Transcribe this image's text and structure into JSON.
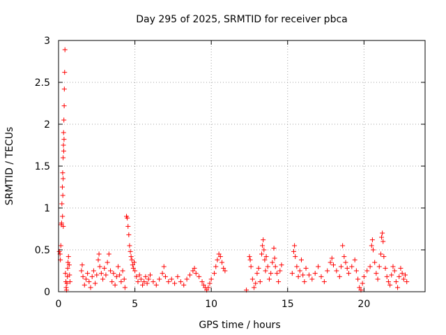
{
  "chart_data": {
    "type": "scatter",
    "title": "Day 295 of 2025, SRMTID for receiver pbca",
    "xlabel": "GPS time / hours",
    "ylabel": "SRMTID / TECUs",
    "xlim": [
      0,
      24
    ],
    "ylim": [
      0,
      3
    ],
    "xticks": [
      0,
      5,
      10,
      15,
      20
    ],
    "yticks": [
      0,
      0.5,
      1,
      1.5,
      2,
      2.5,
      3
    ],
    "xtick_labels": [
      "0",
      "5",
      "10",
      "15",
      "20"
    ],
    "ytick_labels": [
      "0",
      "0.5",
      "1",
      "1.5",
      "2",
      "2.5",
      "3"
    ],
    "grid": true,
    "marker": "plus",
    "color": "#ff0000",
    "series": [
      {
        "name": "pbca",
        "points": [
          [
            0.05,
            0.48
          ],
          [
            0.1,
            0.45
          ],
          [
            0.12,
            0.38
          ],
          [
            0.15,
            0.55
          ],
          [
            0.18,
            0.8
          ],
          [
            0.2,
            0.82
          ],
          [
            0.22,
            1.05
          ],
          [
            0.25,
            1.25
          ],
          [
            0.27,
            1.42
          ],
          [
            0.3,
            1.6
          ],
          [
            0.32,
            1.75
          ],
          [
            0.33,
            1.9
          ],
          [
            0.35,
            2.05
          ],
          [
            0.37,
            2.22
          ],
          [
            0.38,
            2.42
          ],
          [
            0.4,
            2.62
          ],
          [
            0.42,
            2.89
          ],
          [
            0.3,
            1.35
          ],
          [
            0.28,
            1.15
          ],
          [
            0.34,
            1.68
          ],
          [
            0.36,
            1.82
          ],
          [
            0.31,
            0.78
          ],
          [
            0.26,
            0.9
          ],
          [
            0.45,
            0.22
          ],
          [
            0.48,
            0.12
          ],
          [
            0.5,
            0.05
          ],
          [
            0.52,
            0.02
          ],
          [
            0.55,
            0.1
          ],
          [
            0.58,
            0.18
          ],
          [
            0.6,
            0.28
          ],
          [
            0.62,
            0.35
          ],
          [
            0.65,
            0.42
          ],
          [
            0.7,
            0.32
          ],
          [
            0.72,
            0.2
          ],
          [
            0.75,
            0.12
          ],
          [
            1.5,
            0.25
          ],
          [
            1.55,
            0.32
          ],
          [
            1.6,
            0.18
          ],
          [
            1.7,
            0.08
          ],
          [
            1.8,
            0.15
          ],
          [
            1.9,
            0.22
          ],
          [
            2.0,
            0.12
          ],
          [
            2.1,
            0.05
          ],
          [
            2.2,
            0.18
          ],
          [
            2.3,
            0.25
          ],
          [
            2.4,
            0.1
          ],
          [
            2.5,
            0.2
          ],
          [
            2.6,
            0.38
          ],
          [
            2.65,
            0.45
          ],
          [
            2.7,
            0.3
          ],
          [
            2.8,
            0.22
          ],
          [
            2.9,
            0.15
          ],
          [
            3.0,
            0.28
          ],
          [
            3.1,
            0.2
          ],
          [
            3.2,
            0.35
          ],
          [
            3.3,
            0.45
          ],
          [
            3.4,
            0.25
          ],
          [
            3.5,
            0.12
          ],
          [
            3.6,
            0.22
          ],
          [
            3.7,
            0.08
          ],
          [
            3.8,
            0.18
          ],
          [
            3.9,
            0.3
          ],
          [
            4.0,
            0.2
          ],
          [
            4.1,
            0.12
          ],
          [
            4.2,
            0.25
          ],
          [
            4.3,
            0.15
          ],
          [
            4.35,
            0.05
          ],
          [
            4.45,
            0.9
          ],
          [
            4.5,
            0.88
          ],
          [
            4.55,
            0.78
          ],
          [
            4.6,
            0.68
          ],
          [
            4.65,
            0.55
          ],
          [
            4.7,
            0.48
          ],
          [
            4.75,
            0.42
          ],
          [
            4.8,
            0.38
          ],
          [
            4.85,
            0.32
          ],
          [
            4.9,
            0.28
          ],
          [
            4.95,
            0.35
          ],
          [
            5.0,
            0.25
          ],
          [
            5.1,
            0.18
          ],
          [
            5.2,
            0.12
          ],
          [
            5.3,
            0.2
          ],
          [
            5.4,
            0.15
          ],
          [
            5.5,
            0.08
          ],
          [
            5.6,
            0.12
          ],
          [
            5.7,
            0.18
          ],
          [
            5.8,
            0.1
          ],
          [
            5.9,
            0.15
          ],
          [
            6.0,
            0.2
          ],
          [
            6.2,
            0.12
          ],
          [
            6.4,
            0.08
          ],
          [
            6.6,
            0.15
          ],
          [
            6.8,
            0.22
          ],
          [
            6.9,
            0.3
          ],
          [
            7.0,
            0.18
          ],
          [
            7.2,
            0.12
          ],
          [
            7.4,
            0.15
          ],
          [
            7.6,
            0.1
          ],
          [
            7.8,
            0.18
          ],
          [
            8.0,
            0.12
          ],
          [
            8.2,
            0.08
          ],
          [
            8.4,
            0.15
          ],
          [
            8.6,
            0.2
          ],
          [
            8.8,
            0.25
          ],
          [
            8.9,
            0.28
          ],
          [
            9.0,
            0.22
          ],
          [
            9.2,
            0.18
          ],
          [
            9.4,
            0.12
          ],
          [
            9.5,
            0.08
          ],
          [
            9.6,
            0.05
          ],
          [
            9.7,
            0.02
          ],
          [
            9.8,
            0.05
          ],
          [
            9.9,
            0.1
          ],
          [
            10.0,
            0.15
          ],
          [
            10.2,
            0.22
          ],
          [
            10.3,
            0.3
          ],
          [
            10.4,
            0.38
          ],
          [
            10.5,
            0.45
          ],
          [
            10.6,
            0.42
          ],
          [
            10.7,
            0.35
          ],
          [
            10.8,
            0.28
          ],
          [
            10.9,
            0.25
          ],
          [
            12.3,
            0.02
          ],
          [
            12.5,
            0.42
          ],
          [
            12.55,
            0.38
          ],
          [
            12.6,
            0.3
          ],
          [
            12.7,
            0.15
          ],
          [
            12.8,
            0.05
          ],
          [
            12.9,
            0.1
          ],
          [
            13.0,
            0.22
          ],
          [
            13.1,
            0.28
          ],
          [
            13.2,
            0.12
          ],
          [
            13.3,
            0.45
          ],
          [
            13.35,
            0.55
          ],
          [
            13.4,
            0.62
          ],
          [
            13.45,
            0.5
          ],
          [
            13.5,
            0.38
          ],
          [
            13.55,
            0.25
          ],
          [
            13.6,
            0.42
          ],
          [
            13.7,
            0.3
          ],
          [
            13.8,
            0.15
          ],
          [
            13.9,
            0.22
          ],
          [
            14.0,
            0.35
          ],
          [
            14.1,
            0.52
          ],
          [
            14.15,
            0.4
          ],
          [
            14.2,
            0.3
          ],
          [
            14.3,
            0.22
          ],
          [
            14.4,
            0.12
          ],
          [
            14.5,
            0.25
          ],
          [
            14.6,
            0.32
          ],
          [
            15.3,
            0.22
          ],
          [
            15.4,
            0.48
          ],
          [
            15.45,
            0.55
          ],
          [
            15.5,
            0.42
          ],
          [
            15.6,
            0.3
          ],
          [
            15.7,
            0.18
          ],
          [
            15.8,
            0.25
          ],
          [
            15.9,
            0.38
          ],
          [
            16.0,
            0.2
          ],
          [
            16.1,
            0.12
          ],
          [
            16.2,
            0.28
          ],
          [
            16.4,
            0.2
          ],
          [
            16.6,
            0.15
          ],
          [
            16.8,
            0.22
          ],
          [
            17.0,
            0.3
          ],
          [
            17.2,
            0.18
          ],
          [
            17.4,
            0.12
          ],
          [
            17.6,
            0.25
          ],
          [
            17.8,
            0.35
          ],
          [
            17.9,
            0.4
          ],
          [
            18.0,
            0.32
          ],
          [
            18.2,
            0.25
          ],
          [
            18.4,
            0.18
          ],
          [
            18.5,
            0.3
          ],
          [
            18.6,
            0.55
          ],
          [
            18.7,
            0.42
          ],
          [
            18.8,
            0.35
          ],
          [
            18.9,
            0.28
          ],
          [
            19.0,
            0.22
          ],
          [
            19.2,
            0.3
          ],
          [
            19.4,
            0.38
          ],
          [
            19.5,
            0.25
          ],
          [
            19.6,
            0.15
          ],
          [
            19.7,
            0.05
          ],
          [
            19.8,
            0.02
          ],
          [
            19.9,
            0.1
          ],
          [
            20.0,
            0.18
          ],
          [
            20.2,
            0.25
          ],
          [
            20.4,
            0.3
          ],
          [
            20.5,
            0.55
          ],
          [
            20.55,
            0.62
          ],
          [
            20.6,
            0.5
          ],
          [
            20.7,
            0.35
          ],
          [
            20.8,
            0.22
          ],
          [
            20.9,
            0.15
          ],
          [
            21.0,
            0.3
          ],
          [
            21.1,
            0.45
          ],
          [
            21.15,
            0.65
          ],
          [
            21.2,
            0.7
          ],
          [
            21.25,
            0.6
          ],
          [
            21.3,
            0.42
          ],
          [
            21.4,
            0.28
          ],
          [
            21.5,
            0.18
          ],
          [
            21.6,
            0.12
          ],
          [
            21.7,
            0.08
          ],
          [
            21.8,
            0.2
          ],
          [
            21.9,
            0.3
          ],
          [
            22.0,
            0.25
          ],
          [
            22.1,
            0.12
          ],
          [
            22.2,
            0.05
          ],
          [
            22.3,
            0.18
          ],
          [
            22.4,
            0.28
          ],
          [
            22.5,
            0.22
          ],
          [
            22.6,
            0.15
          ],
          [
            22.7,
            0.2
          ],
          [
            22.8,
            0.12
          ]
        ]
      }
    ]
  }
}
